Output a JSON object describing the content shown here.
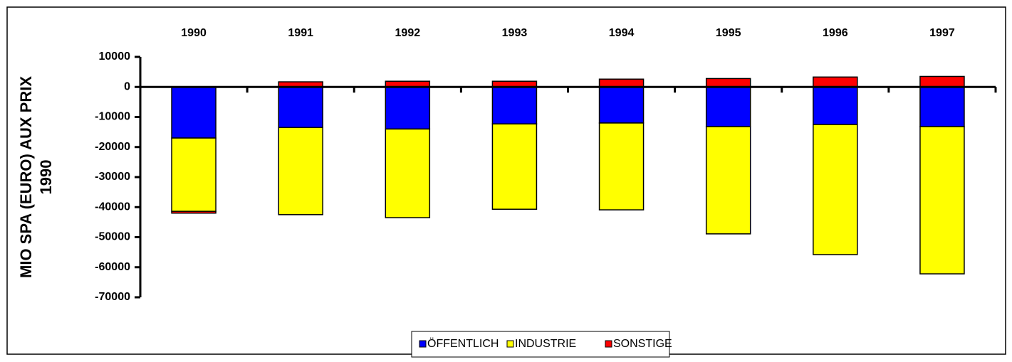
{
  "chart_data": {
    "type": "stacked_bar",
    "y_label": [
      "MIO SPA (EURO) AUX PRIX",
      "1990"
    ],
    "categories": [
      "1990",
      "1991",
      "1992",
      "1993",
      "1994",
      "1995",
      "1996",
      "1997"
    ],
    "series": [
      {
        "name": "ÖFFENTLICH",
        "color": "#0000ff",
        "values": [
          -17000,
          -13500,
          -14000,
          -12300,
          -12000,
          -13200,
          -12500,
          -13200
        ]
      },
      {
        "name": "INDUSTRIE",
        "color": "#ffff00",
        "values": [
          -24400,
          -29000,
          -29500,
          -28400,
          -28900,
          -35700,
          -43300,
          -49000
        ]
      },
      {
        "name": "SONSTIGE",
        "color": "#ff0000",
        "values": [
          -600,
          1700,
          1900,
          1900,
          2600,
          2800,
          3300,
          3500
        ]
      }
    ],
    "ylim": [
      10000,
      -70000
    ],
    "yticks": [
      10000,
      0,
      -10000,
      -20000,
      -30000,
      -40000,
      -50000,
      -60000,
      -70000
    ],
    "legend": "bottom"
  }
}
